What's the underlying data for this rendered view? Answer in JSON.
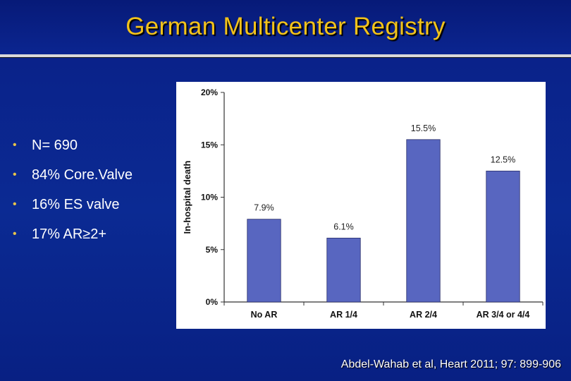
{
  "slide": {
    "title": "German Multicenter Registry",
    "bullets": [
      "N= 690",
      "84% Core.Valve",
      "16% ES valve",
      "17% AR≥2+"
    ],
    "citation": "Abdel-Wahab et al, Heart 2011; 97: 899-906",
    "colors": {
      "background": "#0b2a93",
      "title": "#f2c21b",
      "bullet": "#e8c44a",
      "bar": "#5866c0"
    }
  },
  "chart_data": {
    "type": "bar",
    "categories": [
      "No AR",
      "AR 1/4",
      "AR 2/4",
      "AR 3/4 or 4/4"
    ],
    "values": [
      7.9,
      6.1,
      15.5,
      12.5
    ],
    "data_labels": [
      "7.9%",
      "6.1%",
      "15.5%",
      "12.5%"
    ],
    "title": "",
    "xlabel": "",
    "ylabel": "In-hospital death",
    "ylim": [
      0,
      20
    ],
    "y_ticks": [
      0,
      5,
      10,
      15,
      20
    ],
    "y_tick_labels": [
      "0%",
      "5%",
      "10%",
      "15%",
      "20%"
    ],
    "grid": false,
    "legend": "none",
    "bar_color": "#5866c0"
  }
}
